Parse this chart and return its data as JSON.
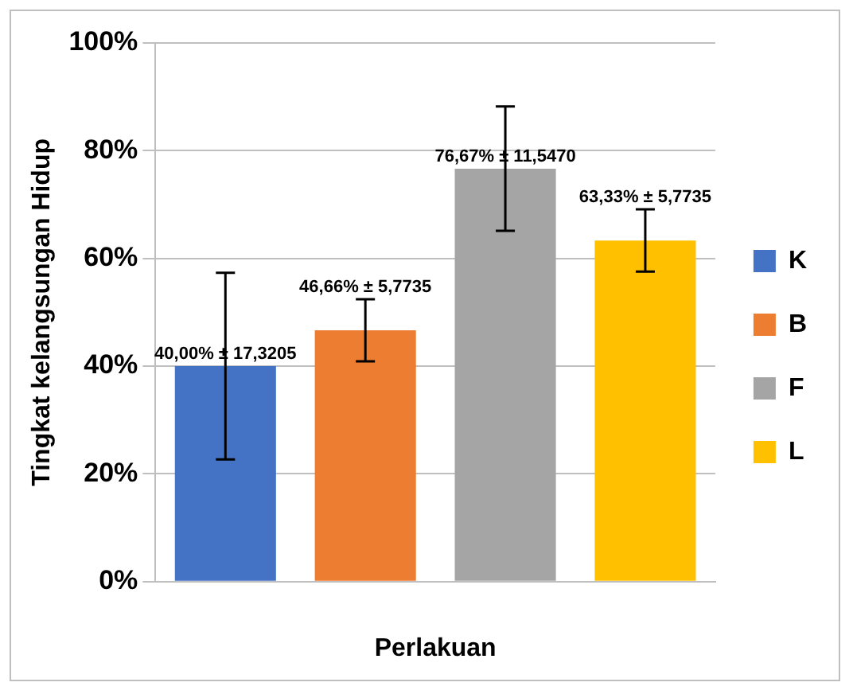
{
  "chart_data": {
    "type": "bar",
    "xlabel": "Perlakuan",
    "ylabel": "Tingkat kelangsungan Hidup",
    "categories": [
      null,
      null,
      null,
      null
    ],
    "series": [
      {
        "name": "K",
        "color": "#4472c4",
        "values": [
          40,
          null,
          null,
          null
        ],
        "errors": [
          17.3205,
          null,
          null,
          null
        ],
        "value_labels": [
          "40,00% ± 17,3205",
          null,
          null,
          null
        ]
      },
      {
        "name": "B",
        "color": "#ed7d31",
        "values": [
          null,
          46.66,
          null,
          null
        ],
        "errors": [
          null,
          5.7735,
          null,
          null
        ],
        "value_labels": [
          null,
          "46,66% ± 5,7735",
          null,
          null
        ]
      },
      {
        "name": "F",
        "color": "#a5a5a5",
        "values": [
          null,
          null,
          76.67,
          null
        ],
        "errors": [
          null,
          null,
          11.547,
          null
        ],
        "value_labels": [
          null,
          null,
          "76,67% ± 11,5470",
          null
        ]
      },
      {
        "name": "L",
        "color": "#ffc000",
        "values": [
          null,
          null,
          null,
          63.33
        ],
        "errors": [
          null,
          null,
          null,
          5.7735
        ],
        "value_labels": [
          null,
          null,
          null,
          "63,33% ± 5,7735"
        ]
      }
    ],
    "ylim": [
      0,
      100
    ],
    "yticks": [
      {
        "value": 0,
        "label": "0%"
      },
      {
        "value": 20,
        "label": "20%"
      },
      {
        "value": 40,
        "label": "40%"
      },
      {
        "value": 60,
        "label": "60%"
      },
      {
        "value": 80,
        "label": "80%"
      },
      {
        "value": 100,
        "label": "100%"
      }
    ],
    "grid": "y",
    "legend": "right"
  }
}
